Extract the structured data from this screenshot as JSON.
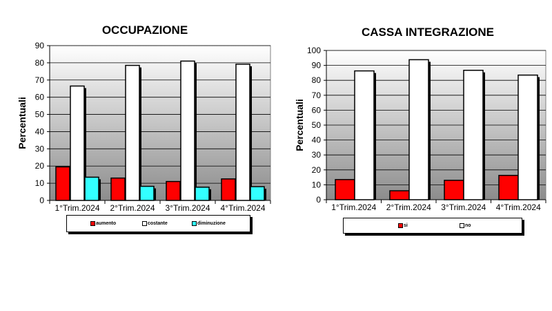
{
  "chart_data": [
    {
      "type": "bar",
      "title": "OCCUPAZIONE",
      "ylabel": "Percentuali",
      "xlabel": "",
      "ylim": [
        0,
        90
      ],
      "yticks": [
        0,
        10,
        20,
        30,
        40,
        50,
        60,
        70,
        80,
        90
      ],
      "categories": [
        "1°Trim.2024",
        "2°Trim.2024",
        "3°Trim.2024",
        "4°Trim.2024"
      ],
      "series": [
        {
          "name": "aumento",
          "color": "#ff0000",
          "values": [
            19.5,
            13,
            11,
            12.5
          ]
        },
        {
          "name": "costante",
          "color": "#ffffff",
          "values": [
            66.5,
            78.5,
            81,
            79.2
          ]
        },
        {
          "name": "diminuzione",
          "color": "#33ffff",
          "values": [
            13.5,
            8.2,
            7.7,
            8.0
          ]
        }
      ],
      "legend_position": "bottom",
      "grid": true
    },
    {
      "type": "bar",
      "title": "CASSA INTEGRAZIONE",
      "ylabel": "Percentuali",
      "xlabel": "",
      "ylim": [
        0,
        100
      ],
      "yticks": [
        0,
        10,
        20,
        30,
        40,
        50,
        60,
        70,
        80,
        90,
        100
      ],
      "categories": [
        "1°Trim.2024",
        "2°Trim.2024",
        "3°Trim.2024",
        "4°Trim.2024"
      ],
      "series": [
        {
          "name": "si",
          "color": "#ff0000",
          "values": [
            13.5,
            6,
            13,
            16.3
          ]
        },
        {
          "name": "no",
          "color": "#ffffff",
          "values": [
            86.3,
            93.8,
            86.7,
            83.5
          ]
        }
      ],
      "legend_position": "bottom",
      "grid": true
    }
  ]
}
